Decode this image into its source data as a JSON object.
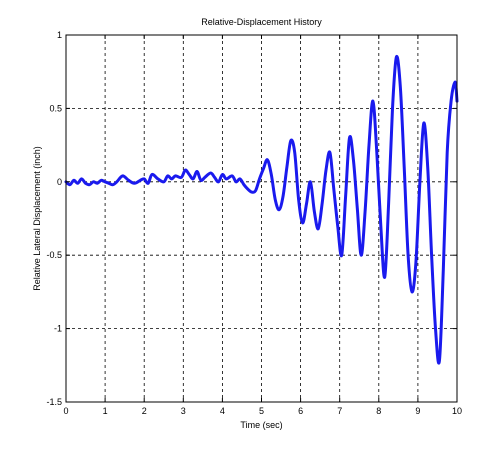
{
  "chart_data": {
    "type": "line",
    "title": "Relative-Displacement History",
    "xlabel": "Time (sec)",
    "ylabel": "Relative Lateral Displacement (inch)",
    "xlim": [
      0,
      10
    ],
    "ylim": [
      -1.5,
      1
    ],
    "grid": true,
    "x_ticks": [
      "0",
      "1",
      "2",
      "3",
      "4",
      "5",
      "6",
      "7",
      "8",
      "9",
      "10"
    ],
    "y_ticks": [
      "-1.5",
      "-1",
      "-0.5",
      "0",
      "0.5",
      "1"
    ],
    "series": [
      {
        "color": "#1a1aee",
        "x": [
          0.0,
          0.1,
          0.2,
          0.3,
          0.4,
          0.5,
          0.6,
          0.7,
          0.8,
          0.9,
          1.0,
          1.1,
          1.2,
          1.3,
          1.45,
          1.6,
          1.75,
          1.9,
          2.0,
          2.1,
          2.2,
          2.35,
          2.5,
          2.6,
          2.7,
          2.8,
          2.95,
          3.05,
          3.15,
          3.25,
          3.35,
          3.45,
          3.55,
          3.7,
          3.8,
          3.9,
          4.0,
          4.1,
          4.25,
          4.35,
          4.45,
          4.55,
          4.65,
          4.75,
          4.85,
          4.95,
          5.05,
          5.15,
          5.25,
          5.35,
          5.45,
          5.55,
          5.65,
          5.75,
          5.85,
          5.95,
          6.05,
          6.15,
          6.25,
          6.35,
          6.45,
          6.55,
          6.65,
          6.75,
          6.85,
          6.95,
          7.05,
          7.15,
          7.25,
          7.35,
          7.45,
          7.55,
          7.65,
          7.75,
          7.85,
          7.95,
          8.05,
          8.15,
          8.25,
          8.35,
          8.45,
          8.55,
          8.65,
          8.75,
          8.85,
          8.95,
          9.05,
          9.15,
          9.25,
          9.35,
          9.45,
          9.55,
          9.65,
          9.75,
          9.85,
          9.95,
          10.0
        ],
        "y": [
          0.0,
          -0.02,
          0.01,
          -0.01,
          0.02,
          -0.01,
          -0.02,
          0.0,
          -0.01,
          0.01,
          0.0,
          -0.01,
          -0.02,
          0.0,
          0.04,
          0.01,
          -0.01,
          0.01,
          0.02,
          -0.01,
          0.05,
          0.02,
          0.0,
          0.04,
          0.02,
          0.04,
          0.03,
          0.08,
          0.05,
          0.02,
          0.07,
          0.01,
          0.03,
          0.06,
          0.03,
          0.0,
          0.05,
          0.02,
          0.04,
          0.0,
          0.02,
          -0.02,
          -0.05,
          -0.07,
          -0.06,
          0.02,
          0.09,
          0.15,
          0.05,
          -0.12,
          -0.19,
          -0.1,
          0.1,
          0.28,
          0.2,
          -0.12,
          -0.28,
          -0.15,
          0.0,
          -0.2,
          -0.32,
          -0.15,
          0.08,
          0.2,
          -0.05,
          -0.3,
          -0.5,
          -0.1,
          0.3,
          0.15,
          -0.18,
          -0.5,
          -0.2,
          0.25,
          0.55,
          0.2,
          -0.3,
          -0.65,
          -0.15,
          0.5,
          0.85,
          0.65,
          0.1,
          -0.5,
          -0.75,
          -0.55,
          0.0,
          0.4,
          0.1,
          -0.5,
          -1.0,
          -1.22,
          -0.6,
          0.2,
          0.55,
          0.68,
          0.55
        ]
      }
    ]
  }
}
